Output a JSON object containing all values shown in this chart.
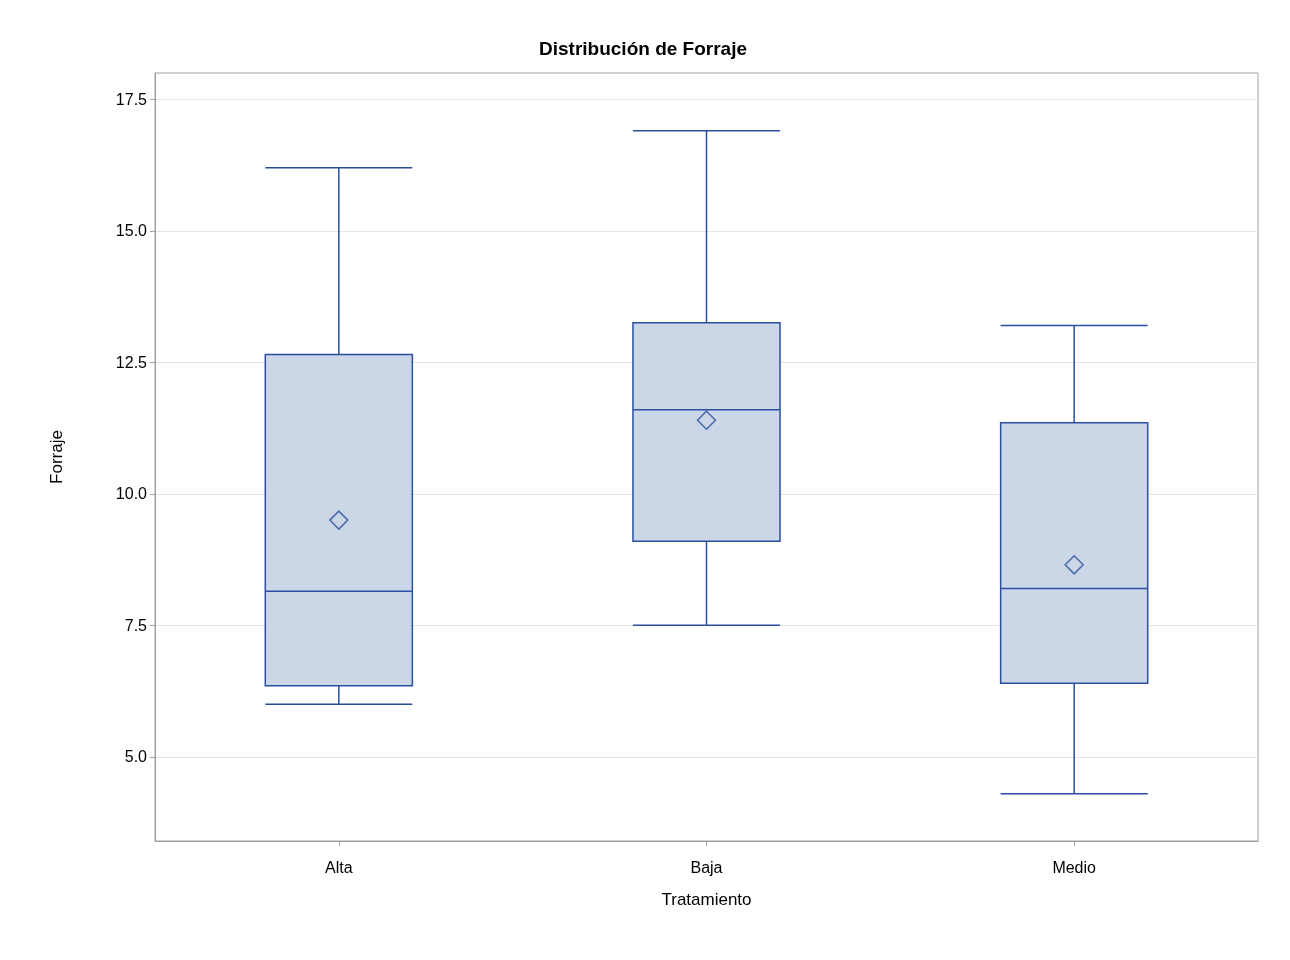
{
  "chart_data": {
    "type": "box",
    "title": "Distribución de Forraje",
    "xlabel": "Tratamiento",
    "ylabel": "Forraje",
    "categories": [
      "Alta",
      "Baja",
      "Medio"
    ],
    "boxes": [
      {
        "low": 6.0,
        "q1": 6.35,
        "median": 8.15,
        "q3": 12.65,
        "high": 16.2,
        "mean": 9.5
      },
      {
        "low": 7.5,
        "q1": 9.1,
        "median": 11.6,
        "q3": 13.25,
        "high": 16.9,
        "mean": 11.4
      },
      {
        "low": 4.3,
        "q1": 6.4,
        "median": 8.2,
        "q3": 11.35,
        "high": 13.2,
        "mean": 8.65
      }
    ],
    "color": "#cbd6e6",
    "ylim": [
      3.4,
      18.0
    ],
    "yticks": [
      {
        "value": 5,
        "label": "5.0"
      },
      7.5,
      {
        "value": 10,
        "label": "10.0"
      },
      12.5,
      {
        "value": 15,
        "label": "15.0"
      },
      17.5
    ],
    "grid": "y"
  }
}
